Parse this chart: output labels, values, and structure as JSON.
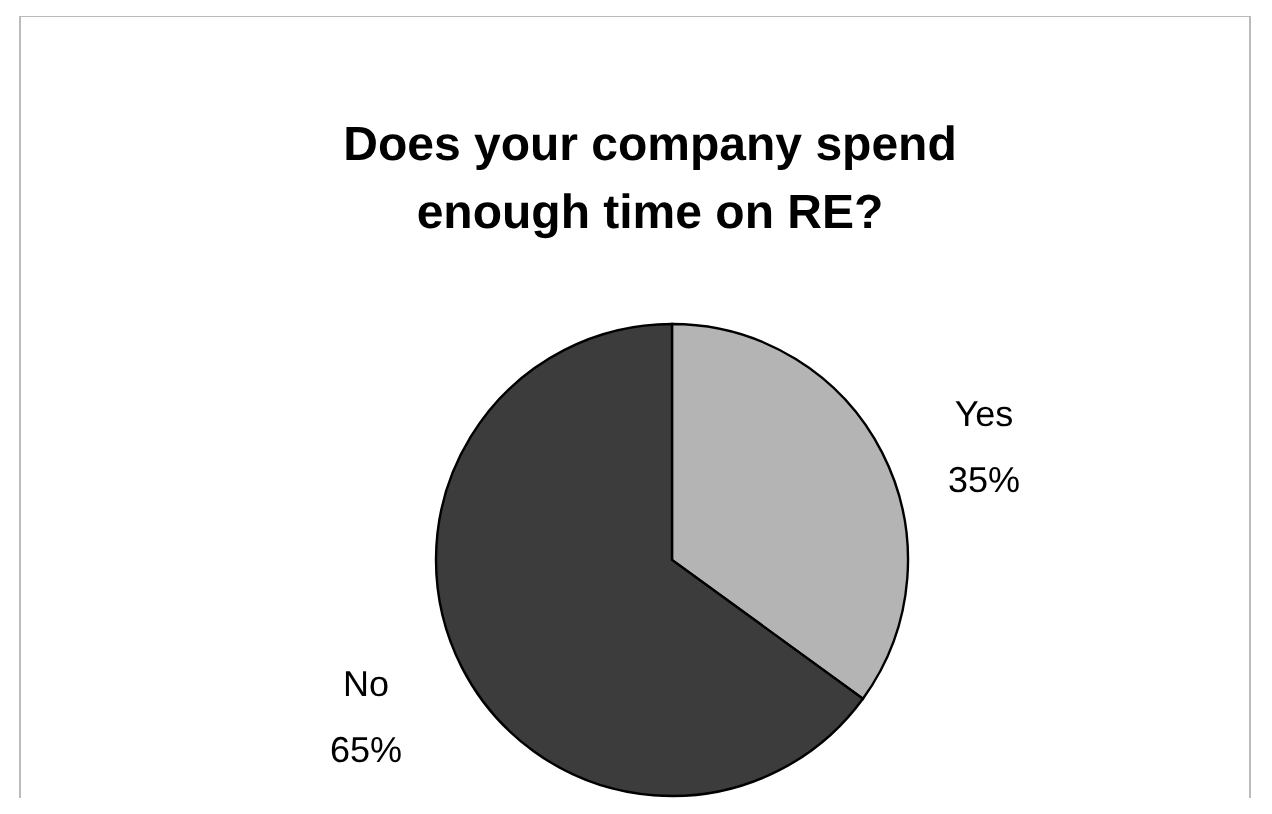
{
  "chart_data": {
    "type": "pie",
    "title": "Does your company spend enough time on RE?",
    "categories": [
      "Yes",
      "No"
    ],
    "values": [
      35,
      65
    ],
    "colors": [
      "#b4b4b4",
      "#3c3c3c"
    ],
    "value_labels": [
      "35%",
      "65%"
    ]
  }
}
